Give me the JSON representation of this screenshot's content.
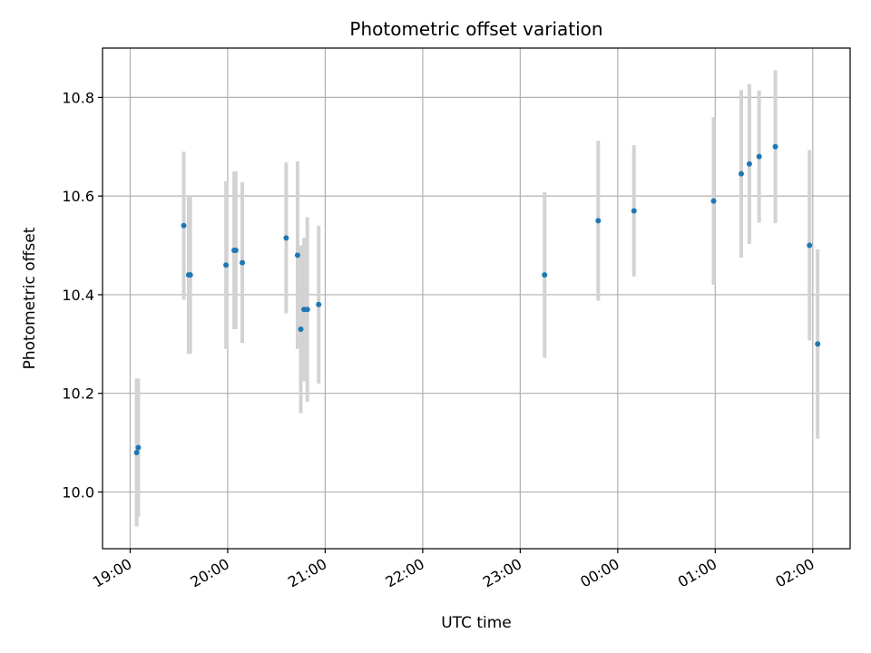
{
  "chart_data": {
    "type": "scatter",
    "title": "Photometric offset variation",
    "xlabel": "UTC time",
    "ylabel": "Photometric offset",
    "grid": true,
    "x_ticks": [
      "19:00",
      "20:00",
      "21:00",
      "22:00",
      "23:00",
      "00:00",
      "01:00",
      "02:00"
    ],
    "y_ticks": [
      "10.0",
      "10.2",
      "10.4",
      "10.6",
      "10.8"
    ],
    "xlim": [
      "18:43",
      "02:23"
    ],
    "ylim": [
      9.885,
      10.9
    ],
    "marker_color": "#1f77b4",
    "errorbar_color": "#d3d3d3",
    "points": [
      {
        "time": "19:04",
        "y": 10.08,
        "err": 0.15
      },
      {
        "time": "19:05",
        "y": 10.09,
        "err": 0.14
      },
      {
        "time": "19:33",
        "y": 10.54,
        "err": 0.15
      },
      {
        "time": "19:36",
        "y": 10.44,
        "err": 0.16
      },
      {
        "time": "19:37",
        "y": 10.44,
        "err": 0.16
      },
      {
        "time": "19:59",
        "y": 10.46,
        "err": 0.17
      },
      {
        "time": "20:04",
        "y": 10.49,
        "err": 0.16
      },
      {
        "time": "20:05",
        "y": 10.49,
        "err": 0.16
      },
      {
        "time": "20:09",
        "y": 10.465,
        "err": 0.163
      },
      {
        "time": "20:36",
        "y": 10.515,
        "err": 0.153
      },
      {
        "time": "20:43",
        "y": 10.48,
        "err": 0.19
      },
      {
        "time": "20:45",
        "y": 10.33,
        "err": 0.17
      },
      {
        "time": "20:47",
        "y": 10.37,
        "err": 0.145
      },
      {
        "time": "20:49",
        "y": 10.37,
        "err": 0.187
      },
      {
        "time": "20:56",
        "y": 10.38,
        "err": 0.16
      },
      {
        "time": "23:15",
        "y": 10.44,
        "err": 0.168
      },
      {
        "time": "23:48",
        "y": 10.55,
        "err": 0.162
      },
      {
        "time": "00:10",
        "y": 10.57,
        "err": 0.133
      },
      {
        "time": "00:59",
        "y": 10.59,
        "err": 0.17
      },
      {
        "time": "01:16",
        "y": 10.645,
        "err": 0.17
      },
      {
        "time": "01:21",
        "y": 10.665,
        "err": 0.162
      },
      {
        "time": "01:27",
        "y": 10.68,
        "err": 0.134
      },
      {
        "time": "01:37",
        "y": 10.7,
        "err": 0.155
      },
      {
        "time": "01:58",
        "y": 10.5,
        "err": 0.193
      },
      {
        "time": "02:03",
        "y": 10.3,
        "err": 0.192
      }
    ]
  }
}
